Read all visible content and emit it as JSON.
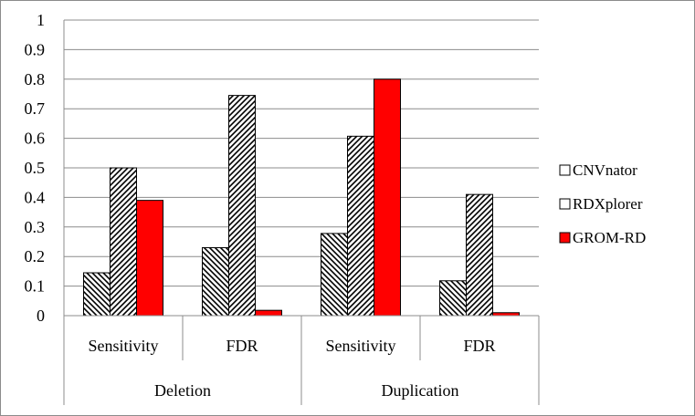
{
  "chart_data": {
    "type": "bar",
    "title": "",
    "xlabel": "",
    "ylabel": "",
    "ylim": [
      0,
      1
    ],
    "ytick_step": 0.1,
    "yticks": [
      "0",
      "0.1",
      "0.2",
      "0.3",
      "0.4",
      "0.5",
      "0.6",
      "0.7",
      "0.8",
      "0.9",
      "1"
    ],
    "grid": true,
    "legend_position": "right",
    "groups": [
      {
        "label": "Deletion",
        "categories": [
          "Sensitivity",
          "FDR"
        ]
      },
      {
        "label": "Duplication",
        "categories": [
          "Sensitivity",
          "FDR"
        ]
      }
    ],
    "categories": [
      "Sensitivity",
      "FDR",
      "Sensitivity",
      "FDR"
    ],
    "series": [
      {
        "name": "CNVnator",
        "pattern": "hatch-down",
        "values": [
          0.145,
          0.23,
          0.278,
          0.118
        ]
      },
      {
        "name": "RDXplorer",
        "pattern": "hatch-up",
        "values": [
          0.5,
          0.745,
          0.607,
          0.41
        ]
      },
      {
        "name": "GROM-RD",
        "color": "#ff0000",
        "values": [
          0.39,
          0.018,
          0.8,
          0.01
        ]
      }
    ]
  }
}
